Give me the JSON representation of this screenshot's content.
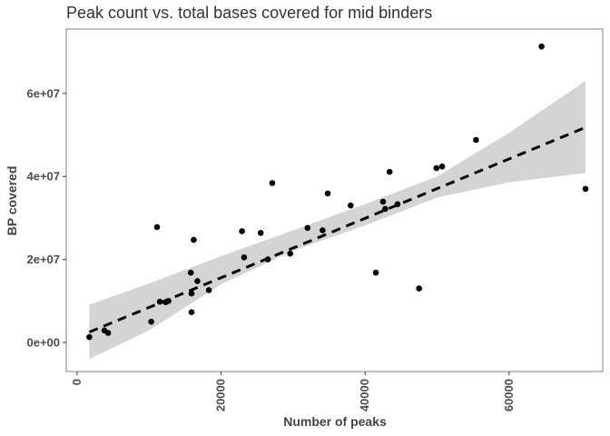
{
  "chart_data": {
    "type": "scatter",
    "title": "Peak count vs. total bases covered for mid binders",
    "xlabel": "Number of peaks",
    "ylabel": "BP covered",
    "xlim": [
      -1500,
      73000
    ],
    "ylim": [
      -7000000,
      75500000
    ],
    "x_ticks": [
      0,
      20000,
      40000,
      60000
    ],
    "x_tick_labels": [
      "0",
      "20000",
      "40000",
      "60000"
    ],
    "y_ticks": [
      0,
      20000000,
      40000000,
      60000000
    ],
    "y_tick_labels": [
      "0e+00",
      "2e+07",
      "4e+07",
      "6e+07"
    ],
    "grid": false,
    "points": [
      {
        "x": 1700,
        "y": 1300000
      },
      {
        "x": 3800,
        "y": 2900000
      },
      {
        "x": 4300,
        "y": 2300000
      },
      {
        "x": 10300,
        "y": 5000000
      },
      {
        "x": 11100,
        "y": 27800000
      },
      {
        "x": 11500,
        "y": 9800000
      },
      {
        "x": 12300,
        "y": 9700000
      },
      {
        "x": 12700,
        "y": 10000000
      },
      {
        "x": 15800,
        "y": 16800000
      },
      {
        "x": 15900,
        "y": 11800000
      },
      {
        "x": 15900,
        "y": 7300000
      },
      {
        "x": 16200,
        "y": 24700000
      },
      {
        "x": 16700,
        "y": 14800000
      },
      {
        "x": 18300,
        "y": 12600000
      },
      {
        "x": 22900,
        "y": 26800000
      },
      {
        "x": 23200,
        "y": 20500000
      },
      {
        "x": 25500,
        "y": 26400000
      },
      {
        "x": 26500,
        "y": 20000000
      },
      {
        "x": 27100,
        "y": 38400000
      },
      {
        "x": 29600,
        "y": 21400000
      },
      {
        "x": 32000,
        "y": 27600000
      },
      {
        "x": 34100,
        "y": 27000000
      },
      {
        "x": 34800,
        "y": 35900000
      },
      {
        "x": 38000,
        "y": 33000000
      },
      {
        "x": 41500,
        "y": 16800000
      },
      {
        "x": 42500,
        "y": 33900000
      },
      {
        "x": 42800,
        "y": 32200000
      },
      {
        "x": 43400,
        "y": 41100000
      },
      {
        "x": 44500,
        "y": 33300000
      },
      {
        "x": 47500,
        "y": 13000000
      },
      {
        "x": 49900,
        "y": 42000000
      },
      {
        "x": 50700,
        "y": 42400000
      },
      {
        "x": 55400,
        "y": 48800000
      },
      {
        "x": 64500,
        "y": 71300000
      },
      {
        "x": 70600,
        "y": 37000000
      }
    ],
    "fit": {
      "method": "linear",
      "style": "dashed",
      "x": [
        1700,
        70600
      ],
      "y": [
        2500000,
        51800000
      ]
    },
    "confidence_band": {
      "x": [
        1700,
        10000,
        20000,
        30000,
        40000,
        50000,
        60000,
        70600
      ],
      "upper": [
        9100000,
        14200000,
        20800000,
        27000000,
        33300000,
        40000000,
        50500000,
        63000000
      ],
      "lower": [
        -4000000,
        2900000,
        14000000,
        22100000,
        28200000,
        34900000,
        38600000,
        40800000
      ]
    },
    "colors": {
      "points": "#000000",
      "fit_line": "#000000",
      "band": "#d4d4d4",
      "panel_border": "#808080",
      "text": "#333333"
    }
  }
}
